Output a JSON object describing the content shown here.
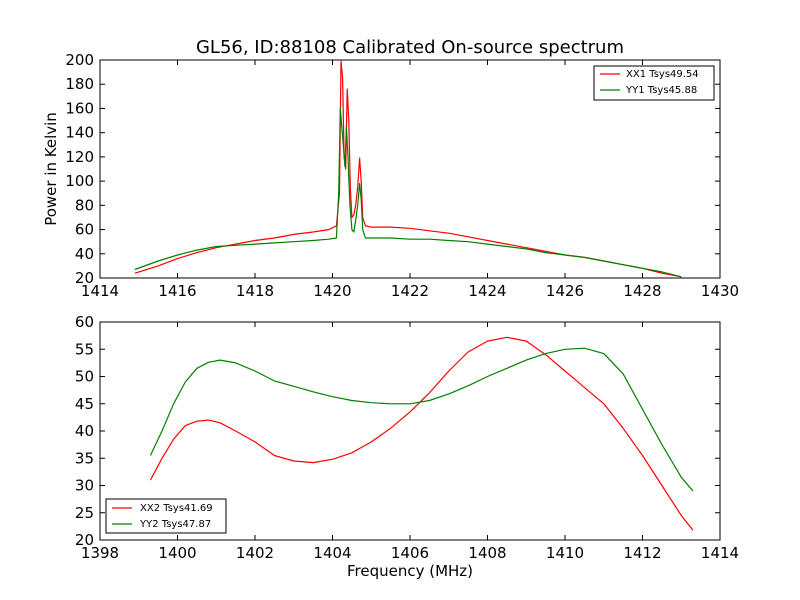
{
  "figure": {
    "title": "GL56, ID:88108 Calibrated On-source spectrum",
    "xlabel": "Frequency (MHz)"
  },
  "colors": {
    "red": "#ff0000",
    "green": "#008000"
  },
  "chart_data": [
    {
      "type": "line",
      "title": "GL56, ID:88108 Calibrated On-source spectrum",
      "xlabel": "",
      "ylabel": "Power in Kelvin",
      "xlim": [
        1414,
        1430
      ],
      "ylim": [
        20,
        200
      ],
      "xticks": [
        1414,
        1416,
        1418,
        1420,
        1422,
        1424,
        1426,
        1428,
        1430
      ],
      "yticks": [
        20,
        40,
        60,
        80,
        100,
        120,
        140,
        160,
        180,
        200
      ],
      "grid": false,
      "legend_position": "top-right",
      "series": [
        {
          "name": "XX1 Tsys49.54",
          "color": "#ff0000",
          "x": [
            1414.9,
            1415.5,
            1416.0,
            1416.5,
            1417.0,
            1417.5,
            1418.0,
            1418.5,
            1419.0,
            1419.5,
            1419.9,
            1420.1,
            1420.18,
            1420.22,
            1420.26,
            1420.3,
            1420.34,
            1420.38,
            1420.42,
            1420.46,
            1420.5,
            1420.55,
            1420.6,
            1420.65,
            1420.7,
            1420.74,
            1420.78,
            1420.85,
            1421.0,
            1421.5,
            1422.0,
            1422.5,
            1423.0,
            1423.5,
            1424.0,
            1424.5,
            1425.0,
            1425.5,
            1426.0,
            1426.5,
            1427.0,
            1427.5,
            1428.0,
            1428.5,
            1429.0
          ],
          "y": [
            24,
            30,
            36,
            41,
            45,
            48,
            51,
            53,
            56,
            58,
            60,
            63,
            90,
            199,
            185,
            120,
            110,
            176,
            150,
            95,
            70,
            72,
            80,
            95,
            119,
            100,
            70,
            63,
            62,
            62,
            61,
            59,
            57,
            54,
            51,
            48,
            45,
            42,
            39,
            37,
            34,
            31,
            28,
            24,
            21
          ]
        },
        {
          "name": "YY1 Tsys45.88",
          "color": "#008000",
          "x": [
            1414.9,
            1415.5,
            1416.0,
            1416.5,
            1417.0,
            1417.5,
            1418.0,
            1418.5,
            1419.0,
            1419.5,
            1419.9,
            1420.1,
            1420.16,
            1420.2,
            1420.24,
            1420.28,
            1420.32,
            1420.36,
            1420.4,
            1420.45,
            1420.5,
            1420.55,
            1420.6,
            1420.65,
            1420.7,
            1420.74,
            1420.78,
            1420.85,
            1421.0,
            1421.5,
            1422.0,
            1422.5,
            1423.0,
            1423.5,
            1424.0,
            1424.5,
            1425.0,
            1425.5,
            1426.0,
            1426.5,
            1427.0,
            1427.5,
            1428.0,
            1428.5,
            1429.0
          ],
          "y": [
            27,
            34,
            39,
            43,
            46,
            47,
            48,
            49,
            50,
            51,
            52,
            53,
            90,
            160,
            145,
            130,
            112,
            145,
            120,
            80,
            60,
            58,
            68,
            80,
            98,
            85,
            60,
            53,
            53,
            53,
            52,
            52,
            51,
            50,
            48,
            46,
            44,
            41,
            39,
            37,
            34,
            31,
            28,
            25,
            21
          ]
        }
      ]
    },
    {
      "type": "line",
      "title": "",
      "xlabel": "Frequency (MHz)",
      "ylabel": "",
      "xlim": [
        1398,
        1414
      ],
      "ylim": [
        20,
        60
      ],
      "xticks": [
        1398,
        1400,
        1402,
        1404,
        1406,
        1408,
        1410,
        1412,
        1414
      ],
      "yticks": [
        20,
        25,
        30,
        35,
        40,
        45,
        50,
        55,
        60
      ],
      "grid": false,
      "legend_position": "bottom-left",
      "series": [
        {
          "name": "XX2 Tsys41.69",
          "color": "#ff0000",
          "x": [
            1399.3,
            1399.6,
            1399.9,
            1400.2,
            1400.5,
            1400.8,
            1401.1,
            1401.5,
            1402.0,
            1402.5,
            1403.0,
            1403.5,
            1404.0,
            1404.5,
            1405.0,
            1405.5,
            1406.0,
            1406.5,
            1407.0,
            1407.5,
            1408.0,
            1408.5,
            1409.0,
            1409.5,
            1410.0,
            1410.5,
            1411.0,
            1411.5,
            1412.0,
            1412.5,
            1413.0,
            1413.3
          ],
          "y": [
            31,
            35,
            38.5,
            41,
            41.8,
            42,
            41.5,
            40,
            38,
            35.5,
            34.5,
            34.2,
            34.8,
            36,
            38,
            40.5,
            43.5,
            47,
            51,
            54.5,
            56.5,
            57.2,
            56.5,
            54,
            51,
            48,
            45,
            40.5,
            35.5,
            30,
            24.5,
            21.8
          ]
        },
        {
          "name": "YY2 Tsys47.87",
          "color": "#008000",
          "x": [
            1399.3,
            1399.6,
            1399.9,
            1400.2,
            1400.5,
            1400.8,
            1401.1,
            1401.5,
            1402.0,
            1402.5,
            1403.0,
            1403.5,
            1404.0,
            1404.5,
            1405.0,
            1405.5,
            1406.0,
            1406.5,
            1407.0,
            1407.5,
            1408.0,
            1408.5,
            1409.0,
            1409.5,
            1410.0,
            1410.5,
            1411.0,
            1411.5,
            1412.0,
            1412.5,
            1413.0,
            1413.3
          ],
          "y": [
            35.5,
            40,
            45,
            49,
            51.5,
            52.6,
            53,
            52.5,
            51,
            49.2,
            48.2,
            47.2,
            46.3,
            45.6,
            45.2,
            45,
            45,
            45.6,
            46.8,
            48.3,
            50,
            51.5,
            53,
            54.2,
            55,
            55.2,
            54.2,
            50.5,
            44,
            37.5,
            31.5,
            29
          ]
        }
      ]
    }
  ]
}
